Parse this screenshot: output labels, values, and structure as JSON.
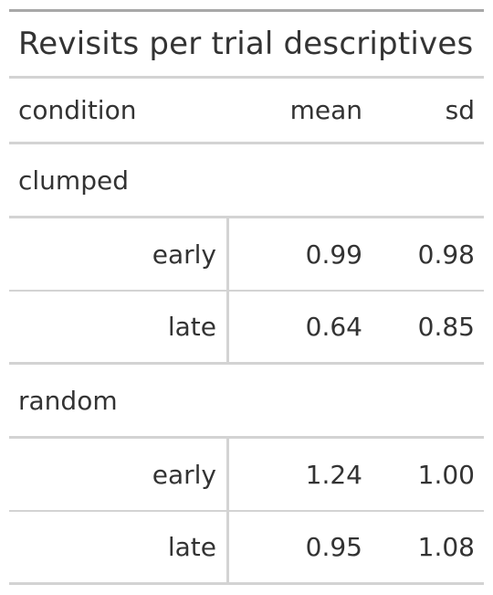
{
  "table": {
    "title": "Revisits per trial descriptives",
    "columns": {
      "stub": "condition",
      "mean": "mean",
      "sd": "sd"
    },
    "groups": [
      {
        "label": "clumped",
        "rows": [
          {
            "phase": "early",
            "mean": "0.99",
            "sd": "0.98"
          },
          {
            "phase": "late",
            "mean": "0.64",
            "sd": "0.85"
          }
        ]
      },
      {
        "label": "random",
        "rows": [
          {
            "phase": "early",
            "mean": "1.24",
            "sd": "1.00"
          },
          {
            "phase": "late",
            "mean": "0.95",
            "sd": "1.08"
          }
        ]
      }
    ]
  }
}
